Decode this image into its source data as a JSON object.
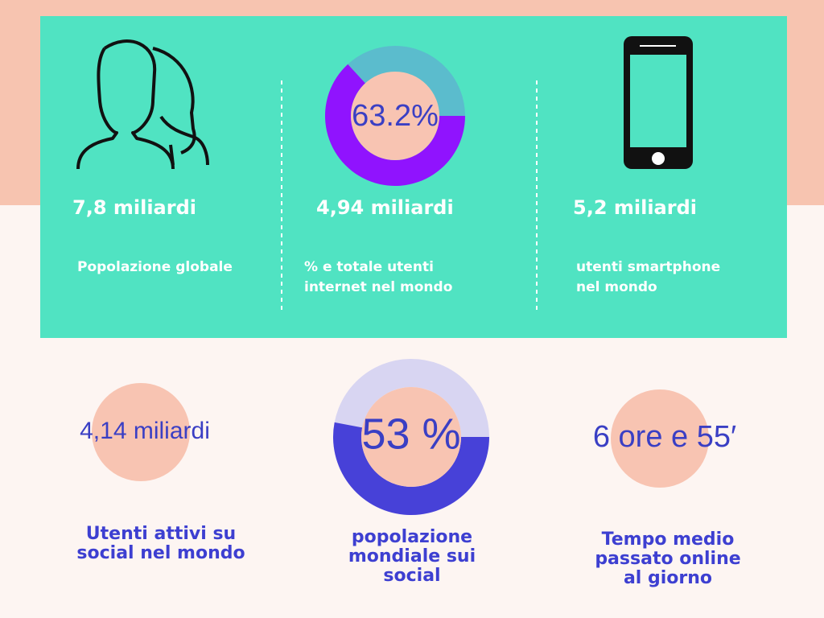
{
  "top_stats": [
    {
      "value": "7,8 miliardi",
      "lines": [
        "Popolazione globale"
      ]
    },
    {
      "value": "4,94 miliardi",
      "lines": [
        "% e totale utenti",
        "internet nel mondo"
      ],
      "donut": {
        "label": "63.2%",
        "percent": 63.2
      }
    },
    {
      "value": "5,2 miliardi",
      "lines": [
        "utenti smartphone",
        "nel mondo"
      ]
    }
  ],
  "bottom_stats": [
    {
      "value": "4,14 miliardi",
      "lines": [
        "Utenti attivi su",
        "social nel mondo"
      ]
    },
    {
      "value": "53 %",
      "percent": 53,
      "lines": [
        "popolazione",
        "mondiale sui",
        "social"
      ]
    },
    {
      "value": "6 ore e 55′",
      "lines": [
        "Tempo medio",
        "passato online",
        "al giorno"
      ]
    }
  ]
}
